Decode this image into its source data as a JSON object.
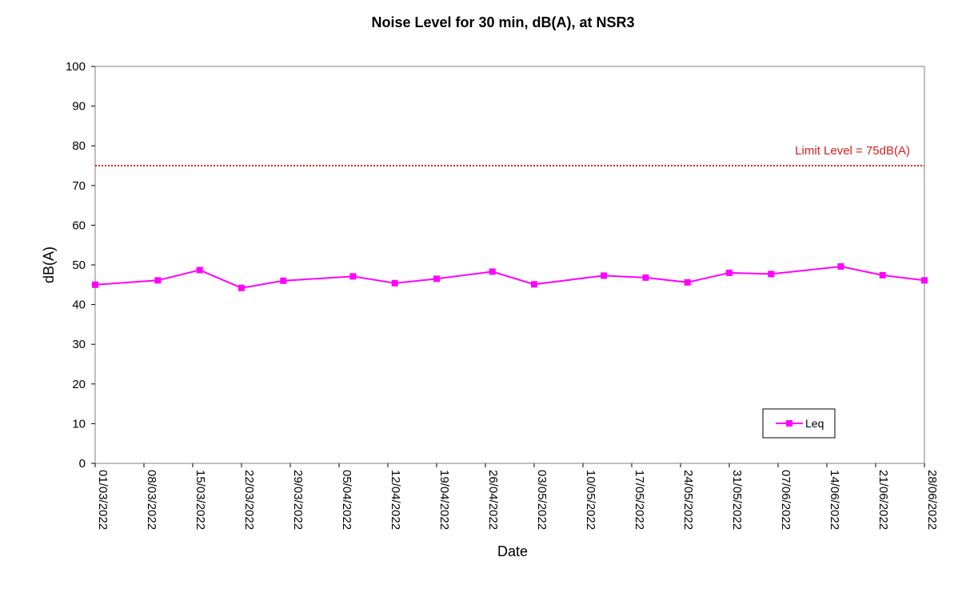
{
  "chart_data": {
    "type": "line",
    "title": "Noise Level for 30 min, dB(A), at NSR3",
    "xlabel": "Date",
    "ylabel": "dB(A)",
    "x_axis_type": "date",
    "xlim": [
      "2022-03-01",
      "2022-06-28"
    ],
    "ylim": [
      0,
      100
    ],
    "y_ticks": [
      0,
      10,
      20,
      30,
      40,
      50,
      60,
      70,
      80,
      90,
      100
    ],
    "x_ticks": [
      {
        "date": "2022-03-01",
        "label": "01/03/2022"
      },
      {
        "date": "2022-03-08",
        "label": "08/03/2022"
      },
      {
        "date": "2022-03-15",
        "label": "15/03/2022"
      },
      {
        "date": "2022-03-22",
        "label": "22/03/2022"
      },
      {
        "date": "2022-03-29",
        "label": "29/03/2022"
      },
      {
        "date": "2022-04-05",
        "label": "05/04/2022"
      },
      {
        "date": "2022-04-12",
        "label": "12/04/2022"
      },
      {
        "date": "2022-04-19",
        "label": "19/04/2022"
      },
      {
        "date": "2022-04-26",
        "label": "26/04/2022"
      },
      {
        "date": "2022-05-03",
        "label": "03/05/2022"
      },
      {
        "date": "2022-05-10",
        "label": "10/05/2022"
      },
      {
        "date": "2022-05-17",
        "label": "17/05/2022"
      },
      {
        "date": "2022-05-24",
        "label": "24/05/2022"
      },
      {
        "date": "2022-05-31",
        "label": "31/05/2022"
      },
      {
        "date": "2022-06-07",
        "label": "07/06/2022"
      },
      {
        "date": "2022-06-14",
        "label": "14/06/2022"
      },
      {
        "date": "2022-06-21",
        "label": "21/06/2022"
      },
      {
        "date": "2022-06-28",
        "label": "28/06/2022"
      }
    ],
    "series": [
      {
        "name": "Leq",
        "color": "#ff00ff",
        "marker": "square",
        "points": [
          {
            "x": "2022-03-01",
            "y": 45.0
          },
          {
            "x": "2022-03-10",
            "y": 46.1
          },
          {
            "x": "2022-03-16",
            "y": 48.7
          },
          {
            "x": "2022-03-22",
            "y": 44.2
          },
          {
            "x": "2022-03-28",
            "y": 46.0
          },
          {
            "x": "2022-04-07",
            "y": 47.1
          },
          {
            "x": "2022-04-13",
            "y": 45.4
          },
          {
            "x": "2022-04-19",
            "y": 46.5
          },
          {
            "x": "2022-04-27",
            "y": 48.3
          },
          {
            "x": "2022-05-03",
            "y": 45.1
          },
          {
            "x": "2022-05-13",
            "y": 47.3
          },
          {
            "x": "2022-05-19",
            "y": 46.8
          },
          {
            "x": "2022-05-25",
            "y": 45.6
          },
          {
            "x": "2022-05-31",
            "y": 48.0
          },
          {
            "x": "2022-06-06",
            "y": 47.7
          },
          {
            "x": "2022-06-16",
            "y": 49.6
          },
          {
            "x": "2022-06-22",
            "y": 47.4
          },
          {
            "x": "2022-06-28",
            "y": 46.1
          }
        ]
      }
    ],
    "limit_line": {
      "value": 75,
      "label": "Limit Level = 75dB(A)",
      "color": "#d62020",
      "style": "dotted"
    },
    "legend": {
      "position": "bottom-right",
      "entries": [
        "Leq"
      ]
    },
    "grid": false
  }
}
